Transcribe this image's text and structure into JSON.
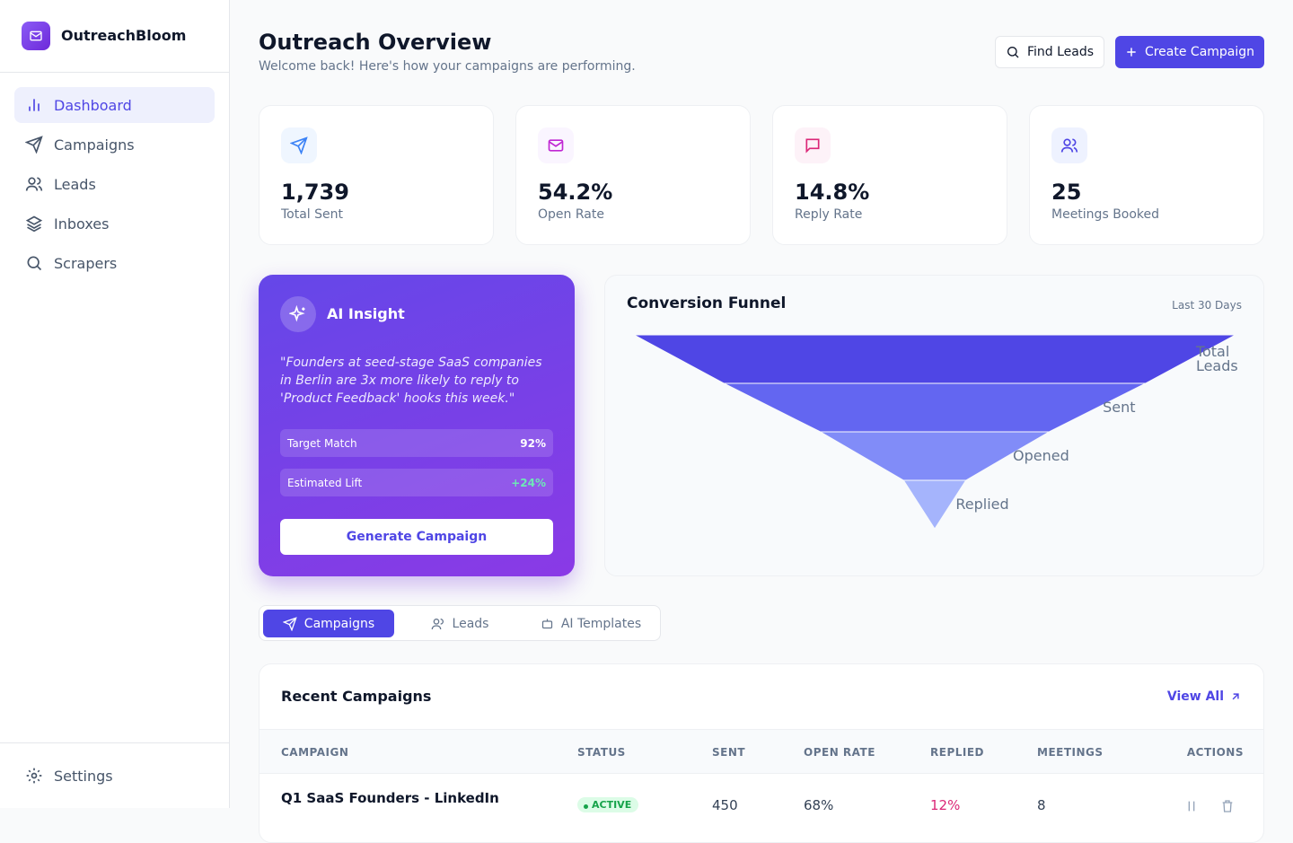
{
  "sidebar": {
    "brand": "OutreachBloom",
    "nav": [
      "Dashboard",
      "Campaigns",
      "Leads",
      "Inboxes",
      "Scrapers"
    ],
    "settings": "Settings"
  },
  "header": {
    "title": "Outreach Overview",
    "subtitle": "Welcome back! Here's how your campaigns are performing.",
    "find_leads": "Find Leads",
    "create_campaign": "Create Campaign"
  },
  "stats": [
    {
      "value": "1,739",
      "label": "Total Sent"
    },
    {
      "value": "54.2%",
      "label": "Open Rate"
    },
    {
      "value": "14.8%",
      "label": "Reply Rate"
    },
    {
      "value": "25",
      "label": "Meetings Booked"
    }
  ],
  "ai_insight": {
    "title": "AI Insight",
    "quote": "\"Founders at seed-stage SaaS companies in Berlin are 3x more likely to reply to 'Product Feedback' hooks this week.\"",
    "metrics": [
      {
        "label": "Target Match",
        "value": "92%"
      },
      {
        "label": "Estimated Lift",
        "value": "+24%"
      }
    ],
    "button": "Generate Campaign"
  },
  "funnel": {
    "type": "funnel",
    "title": "Conversion Funnel",
    "period": "Last 30 Days",
    "categories": [
      "Total Leads",
      "Sent",
      "Opened",
      "Replied"
    ],
    "values": [
      2480,
      1739,
      943,
      257
    ],
    "colors": [
      "#4f46e5",
      "#6366f1",
      "#818cf8",
      "#a5b4fc"
    ]
  },
  "tabs": [
    "Campaigns",
    "Leads",
    "AI Templates"
  ],
  "table": {
    "title": "Recent Campaigns",
    "view_all": "View All",
    "columns": [
      "CAMPAIGN",
      "STATUS",
      "SENT",
      "OPEN RATE",
      "REPLIED",
      "MEETINGS",
      "ACTIONS"
    ],
    "rows": [
      [
        "Q1 SaaS Founders - LinkedIn",
        "ACTIVE",
        "450",
        "68%",
        "12%",
        "8"
      ]
    ]
  }
}
